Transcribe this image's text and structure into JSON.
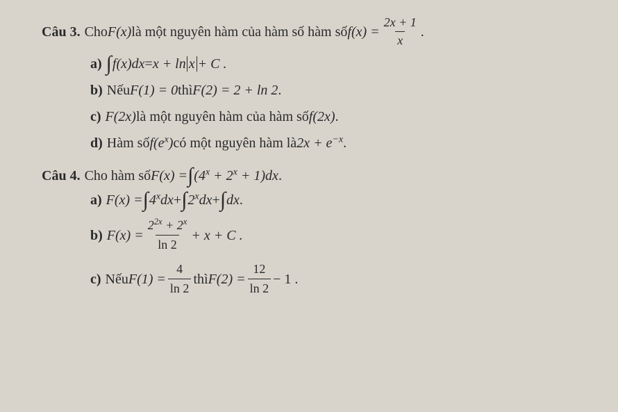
{
  "document": {
    "type": "math-exam",
    "language": "vi",
    "background_color": "#d8d4cc",
    "text_color": "#2a2a2a",
    "font_family": "Times New Roman",
    "base_fontsize": 20
  },
  "q3": {
    "label": "Câu 3.",
    "stem_pre": "Cho ",
    "stem_fx": "F(x)",
    "stem_mid1": " là một nguyên hàm của hàm số hàm số ",
    "stem_fxeq": "f(x) = ",
    "frac_num": "2x + 1",
    "frac_den": "x",
    "period": " .",
    "a": {
      "label": "a)",
      "pre": "",
      "expr_left": "f(x)dx",
      "eq": " = ",
      "rhs1": "x + ln",
      "abs": "x",
      "rhs2": " + C .",
      "has_integral": true
    },
    "b": {
      "label": "b)",
      "pre": "Nếu ",
      "f1": "F(1) = 0",
      "mid": " thì ",
      "f2": "F(2) = 2 + ln 2",
      "post": " ."
    },
    "c": {
      "label": "c)",
      "f2x": "F(2x)",
      "mid": " là một nguyên hàm của hàm số ",
      "fx2": "f(2x)",
      "post": "."
    },
    "d": {
      "label": "d)",
      "pre": "Hàm số ",
      "fex": "f(e",
      "exp": "x",
      "close": ")",
      "mid": " có một nguyên hàm là ",
      "rhs1": "2x + e",
      "rhs_exp": "−x",
      "post": "."
    }
  },
  "q4": {
    "label": "Câu 4.",
    "stem_pre": "Cho hàm số ",
    "stem_fx": "F(x) = ",
    "int_body1": "(4",
    "int_exp1": "x",
    "int_body2": " + 2",
    "int_exp2": "x",
    "int_body3": " + 1)dx",
    "post": " .",
    "a": {
      "label": "a)",
      "lhs": "F(x) = ",
      "t1a": "4",
      "t1exp": "x",
      "t1b": "dx",
      "plus1": " + ",
      "t2a": "2",
      "t2exp": "x",
      "t2b": "dx",
      "plus2": " + ",
      "t3": "dx",
      "post": " ."
    },
    "b": {
      "label": "b)",
      "lhs": "F(x) = ",
      "num1": "2",
      "num1exp": "2x",
      "num_plus": " + 2",
      "num2exp": "x",
      "den": "ln 2",
      "tail": " + x + C ."
    },
    "c": {
      "label": "c)",
      "pre": "Nếu ",
      "f1": "F(1) = ",
      "f1num": "4",
      "f1den": "ln 2",
      "mid": " thì ",
      "f2": "F(2) = ",
      "f2num": "12",
      "f2den": "ln 2",
      "tail": " − 1 ."
    }
  }
}
